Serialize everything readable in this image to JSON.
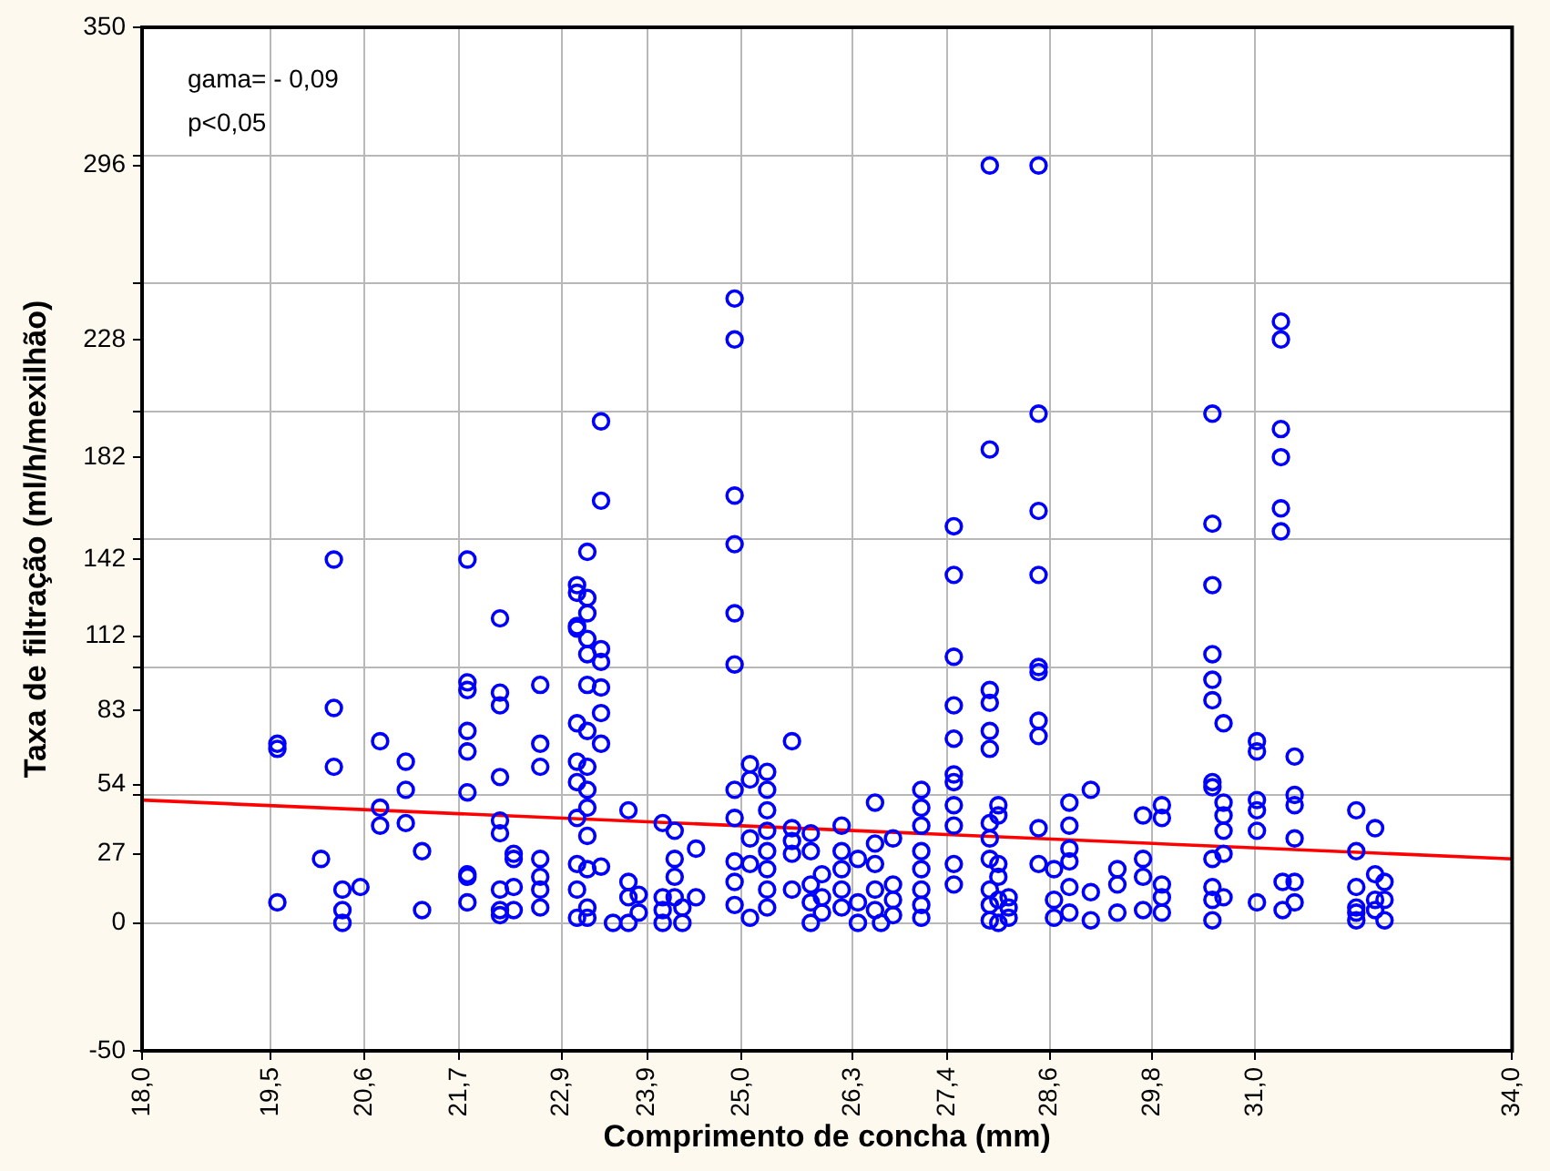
{
  "chart_data": {
    "type": "scatter",
    "xlabel": "Comprimento de concha (mm)",
    "ylabel": "Taxa de filtração (ml/h/mexilhão)",
    "annotations": [
      "gama= - 0,09",
      "p<0,05"
    ],
    "xlim": [
      18,
      34
    ],
    "xticks": [
      {
        "value": 18,
        "label": "18,0"
      },
      {
        "value": 19.5,
        "label": "19,5"
      },
      {
        "value": 20.6,
        "label": "20,6"
      },
      {
        "value": 21.7,
        "label": "21,7"
      },
      {
        "value": 22.9,
        "label": "22,9"
      },
      {
        "value": 23.9,
        "label": "23,9"
      },
      {
        "value": 25,
        "label": "25,0"
      },
      {
        "value": 26.3,
        "label": "26,3"
      },
      {
        "value": 27.4,
        "label": "27,4"
      },
      {
        "value": 28.6,
        "label": "28,6"
      },
      {
        "value": 29.8,
        "label": "29,8"
      },
      {
        "value": 31,
        "label": "31,0"
      },
      {
        "value": 34,
        "label": "34,0"
      }
    ],
    "ylim": [
      -50,
      350
    ],
    "yticks": [
      -50,
      0,
      27,
      54,
      83,
      112,
      142,
      182,
      228,
      296,
      350,
      {
        "value": 50,
        "label": null
      },
      {
        "value": 100,
        "label": null
      },
      {
        "value": 150,
        "label": null
      },
      {
        "value": 200,
        "label": null
      },
      {
        "value": 250,
        "label": null
      },
      {
        "value": 300,
        "label": null
      }
    ],
    "grid": true,
    "legend": false,
    "series": [
      {
        "type": "scatter",
        "color": "#0000ff",
        "marker": "circle",
        "x": [
          19.58,
          19.58,
          19.58,
          20.09,
          20.24,
          20.24,
          20.24,
          20.34,
          20.34,
          20.34,
          20.55,
          20.78,
          20.78,
          20.78,
          21.08,
          21.08,
          21.08,
          21.27,
          21.27,
          21.8,
          21.8,
          21.8,
          21.8,
          21.8,
          21.8,
          21.8,
          21.8,
          21.8,
          22.18,
          22.18,
          22.18,
          22.18,
          22.18,
          22.18,
          22.18,
          22.18,
          22.18,
          22.34,
          22.34,
          22.34,
          22.34,
          22.65,
          22.65,
          22.65,
          22.65,
          22.65,
          22.65,
          22.65,
          23.08,
          23.08,
          23.08,
          23.08,
          23.08,
          23.08,
          23.08,
          23.08,
          23.08,
          23.08,
          23.08,
          23.2,
          23.2,
          23.2,
          23.2,
          23.2,
          23.2,
          23.2,
          23.2,
          23.2,
          23.2,
          23.2,
          23.2,
          23.2,
          23.2,
          23.36,
          23.36,
          23.36,
          23.36,
          23.36,
          23.36,
          23.36,
          23.36,
          23.5,
          23.68,
          23.68,
          23.68,
          23.68,
          23.8,
          23.8,
          24.08,
          24.08,
          24.08,
          24.08,
          24.22,
          24.22,
          24.22,
          24.22,
          24.31,
          24.31,
          24.47,
          24.47,
          24.92,
          24.92,
          24.92,
          24.92,
          24.92,
          24.92,
          24.92,
          24.92,
          24.92,
          24.92,
          24.92,
          25.1,
          25.1,
          25.1,
          25.1,
          25.1,
          25.3,
          25.3,
          25.3,
          25.3,
          25.3,
          25.3,
          25.3,
          25.3,
          25.59,
          25.59,
          25.59,
          25.59,
          25.59,
          25.81,
          25.81,
          25.81,
          25.81,
          25.81,
          25.94,
          25.94,
          25.94,
          26.17,
          26.17,
          26.17,
          26.17,
          26.17,
          26.36,
          26.36,
          26.36,
          26.56,
          26.56,
          26.56,
          26.56,
          26.56,
          26.63,
          26.77,
          26.77,
          26.77,
          26.77,
          27.1,
          27.1,
          27.1,
          27.1,
          27.1,
          27.1,
          27.1,
          27.1,
          27.48,
          27.48,
          27.48,
          27.48,
          27.48,
          27.48,
          27.48,
          27.48,
          27.48,
          27.48,
          27.48,
          27.9,
          27.9,
          27.9,
          27.9,
          27.9,
          27.9,
          27.9,
          27.9,
          27.9,
          27.9,
          27.9,
          27.9,
          28.0,
          28.0,
          28.0,
          28.0,
          28.0,
          28.0,
          28.12,
          28.12,
          28.12,
          28.47,
          28.47,
          28.47,
          28.47,
          28.47,
          28.47,
          28.47,
          28.47,
          28.47,
          28.47,
          28.65,
          28.65,
          28.65,
          28.83,
          28.83,
          28.83,
          28.83,
          28.83,
          28.83,
          29.08,
          29.08,
          29.08,
          29.39,
          29.39,
          29.39,
          29.69,
          29.69,
          29.69,
          29.69,
          29.91,
          29.91,
          29.91,
          29.91,
          29.91,
          30.5,
          30.5,
          30.5,
          30.5,
          30.5,
          30.5,
          30.5,
          30.5,
          30.5,
          30.5,
          30.5,
          30.5,
          30.63,
          30.63,
          30.63,
          30.63,
          30.63,
          30.63,
          31.02,
          31.02,
          31.02,
          31.02,
          31.02,
          31.02,
          31.3,
          31.3,
          31.3,
          31.3,
          31.3,
          31.3,
          31.32,
          31.32,
          31.46,
          31.46,
          31.46,
          31.46,
          31.46,
          31.46,
          32.18,
          32.18,
          32.18,
          32.18,
          32.18,
          32.18,
          32.4,
          32.4,
          32.4,
          32.4,
          32.51,
          32.51,
          32.51
        ],
        "values": [
          70,
          68,
          8,
          25,
          142,
          84,
          61,
          13,
          5,
          0,
          14,
          71,
          45,
          38,
          63,
          52,
          39,
          28,
          5,
          142,
          94,
          91,
          75,
          67,
          51,
          19,
          18,
          8,
          119,
          90,
          85,
          57,
          40,
          35,
          13,
          5,
          3,
          27,
          25,
          14,
          5,
          93,
          70,
          61,
          25,
          18,
          13,
          6,
          132,
          129,
          116,
          115,
          78,
          63,
          55,
          41,
          23,
          13,
          2,
          145,
          127,
          121,
          111,
          105,
          93,
          75,
          61,
          52,
          45,
          34,
          21,
          6,
          2,
          196,
          165,
          107,
          102,
          92,
          82,
          70,
          22,
          0,
          44,
          16,
          10,
          0,
          11,
          4,
          39,
          10,
          5,
          0,
          36,
          25,
          18,
          10,
          6,
          0,
          29,
          10,
          244,
          228,
          167,
          148,
          121,
          101,
          52,
          41,
          24,
          16,
          7,
          62,
          56,
          33,
          23,
          2,
          59,
          52,
          44,
          36,
          28,
          21,
          13,
          6,
          71,
          37,
          32,
          27,
          13,
          35,
          28,
          15,
          8,
          0,
          19,
          10,
          4,
          38,
          28,
          21,
          13,
          6,
          25,
          8,
          0,
          47,
          31,
          23,
          13,
          5,
          0,
          33,
          15,
          9,
          3,
          52,
          45,
          38,
          28,
          21,
          13,
          7,
          2,
          155,
          136,
          104,
          85,
          72,
          58,
          55,
          46,
          38,
          23,
          15,
          296,
          185,
          91,
          86,
          75,
          68,
          39,
          33,
          25,
          13,
          7,
          1,
          46,
          42,
          23,
          18,
          9,
          0,
          10,
          6,
          2,
          296,
          199,
          161,
          136,
          100,
          98,
          79,
          73,
          37,
          23,
          21,
          9,
          2,
          47,
          38,
          29,
          24,
          14,
          4,
          52,
          12,
          1,
          21,
          15,
          4,
          42,
          25,
          18,
          5,
          46,
          41,
          15,
          10,
          4,
          199,
          156,
          132,
          105,
          95,
          87,
          55,
          53,
          25,
          14,
          9,
          1,
          78,
          47,
          42,
          36,
          27,
          10,
          71,
          67,
          48,
          44,
          36,
          8,
          235,
          228,
          193,
          182,
          162,
          153,
          16,
          5,
          65,
          50,
          46,
          33,
          16,
          8,
          44,
          28,
          14,
          6,
          4,
          1,
          37,
          19,
          9,
          5,
          16,
          9,
          1
        ]
      },
      {
        "type": "line",
        "color": "#ff0000",
        "x": [
          18,
          34
        ],
        "values": [
          48,
          25
        ]
      }
    ]
  }
}
